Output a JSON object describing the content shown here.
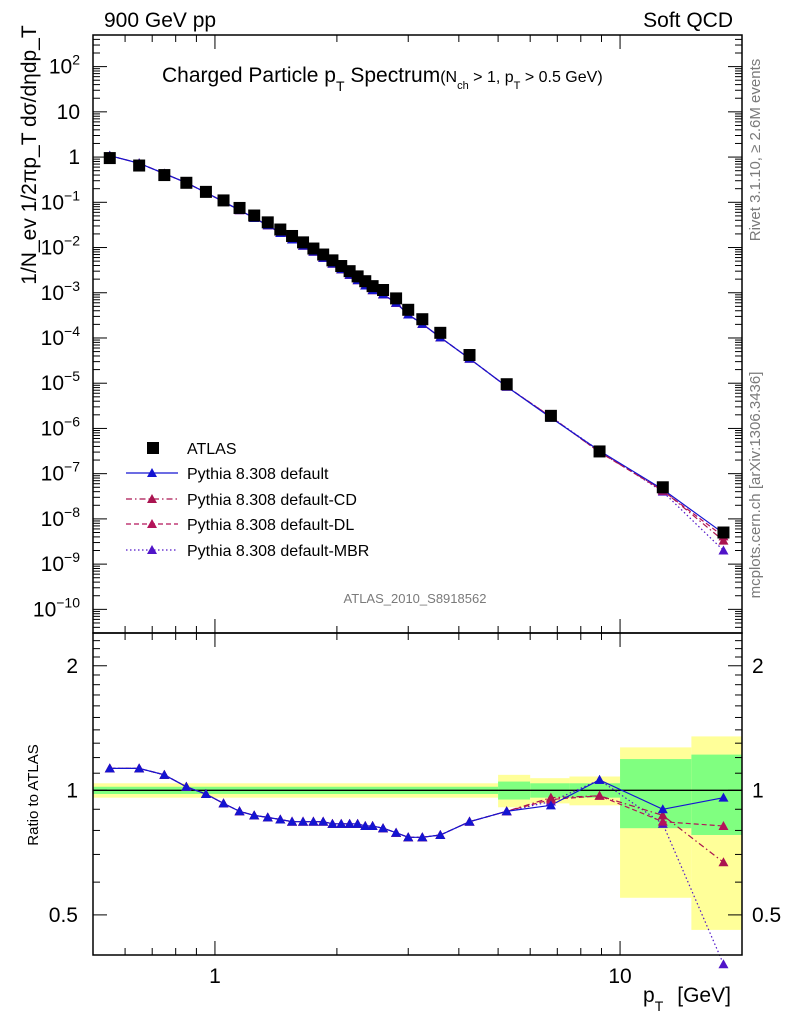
{
  "header": {
    "left": "900 GeV pp",
    "right": "Soft QCD"
  },
  "plot": {
    "title_main": "Charged Particle p",
    "title_main_sub": "T",
    "title_main_tail": " Spectrum",
    "title_cuts": "(N",
    "title_cuts_sub1": "ch",
    "title_cuts_mid": " > 1, p",
    "title_cuts_sub2": "T",
    "title_cuts_tail": " > 0.5 GeV)",
    "analysis_id": "ATLAS_2010_S8918562",
    "ylabel": "1/N_ev 1/2πp_T dσ/dηdp_T",
    "ratio_ylabel": "Ratio to ATLAS",
    "xlabel_main": "p",
    "xlabel_sub": "T",
    "xlabel_unit": "[GeV]"
  },
  "side_text": {
    "rivet": "Rivet 3.1.10, ≥ 2.6M events",
    "mcplots": "mcplots.cern.ch [arXiv:1306.3436]"
  },
  "colors": {
    "data": "#000000",
    "default": "#1414d2",
    "cd": "#aa1450",
    "dl": "#b4145a",
    "mbr": "#5014c8",
    "band_inner": "#80ff80",
    "band_outer": "#ffff99"
  },
  "chart_data": [
    {
      "type": "scatter",
      "xscale": "log",
      "yscale": "log",
      "xlim": [
        0.5,
        20
      ],
      "ylim": [
        3e-11,
        500
      ],
      "legend_position": "lower-left",
      "x": [
        0.55,
        0.65,
        0.75,
        0.85,
        0.95,
        1.05,
        1.15,
        1.25,
        1.35,
        1.45,
        1.55,
        1.65,
        1.75,
        1.85,
        1.95,
        2.05,
        2.15,
        2.25,
        2.35,
        2.45,
        2.6,
        2.8,
        3.0,
        3.25,
        3.6,
        4.25,
        5.25,
        6.75,
        8.9,
        12.75,
        18.0
      ],
      "series": [
        {
          "name": "ATLAS",
          "marker": "square",
          "values": [
            0.95,
            0.65,
            0.4,
            0.27,
            0.17,
            0.11,
            0.075,
            0.051,
            0.036,
            0.025,
            0.018,
            0.013,
            0.0095,
            0.007,
            0.0052,
            0.0039,
            0.003,
            0.0023,
            0.0018,
            0.0014,
            0.00115,
            0.00075,
            0.00042,
            0.00026,
            0.00013,
            4.2e-05,
            9.5e-06,
            1.9e-06,
            3.1e-07,
            5e-08,
            5e-09
          ]
        },
        {
          "name": "Pythia 8.308 default",
          "line": "solid",
          "values": [
            1.07,
            0.73,
            0.43,
            0.27,
            0.165,
            0.103,
            0.067,
            0.045,
            0.031,
            0.021,
            0.015,
            0.011,
            0.0081,
            0.0059,
            0.0044,
            0.0033,
            0.0025,
            0.0019,
            0.00145,
            0.00114,
            0.00092,
            0.0006,
            0.00033,
            0.000205,
            0.000103,
            3.5e-05,
            8.4e-06,
            1.72e-06,
            3.2e-07,
            4.5e-08,
            4.8e-09
          ]
        },
        {
          "name": "Pythia 8.308 default-CD",
          "line": "dashdot",
          "values": [
            1.07,
            0.73,
            0.43,
            0.27,
            0.165,
            0.103,
            0.067,
            0.045,
            0.031,
            0.021,
            0.015,
            0.011,
            0.0081,
            0.0059,
            0.0044,
            0.0033,
            0.0025,
            0.0019,
            0.00145,
            0.00114,
            0.00092,
            0.0006,
            0.00033,
            0.000205,
            0.000103,
            3.5e-05,
            8.4e-06,
            1.8e-06,
            3e-07,
            4.3e-08,
            3.3e-09
          ]
        },
        {
          "name": "Pythia 8.308 default-DL",
          "line": "dashed",
          "values": [
            1.07,
            0.73,
            0.43,
            0.27,
            0.165,
            0.103,
            0.067,
            0.045,
            0.031,
            0.021,
            0.015,
            0.011,
            0.0081,
            0.0059,
            0.0044,
            0.0033,
            0.0025,
            0.0019,
            0.00145,
            0.00114,
            0.00092,
            0.0006,
            0.00033,
            0.000205,
            0.000103,
            3.5e-05,
            8.4e-06,
            1.8e-06,
            3e-07,
            4.2e-08,
            4.1e-09
          ]
        },
        {
          "name": "Pythia 8.308 default-MBR",
          "line": "dotted",
          "values": [
            1.07,
            0.73,
            0.43,
            0.27,
            0.165,
            0.103,
            0.067,
            0.045,
            0.031,
            0.021,
            0.015,
            0.011,
            0.0081,
            0.0059,
            0.0044,
            0.0033,
            0.0025,
            0.0019,
            0.00145,
            0.00114,
            0.00092,
            0.0006,
            0.00033,
            0.000205,
            0.000103,
            3.5e-05,
            8.4e-06,
            1.8e-06,
            3.2e-07,
            4e-08,
            2e-09
          ]
        }
      ],
      "yticks": [
        "10^{-10}",
        "10^{-9}",
        "10^{-8}",
        "10^{-7}",
        "10^{-6}",
        "10^{-5}",
        "10^{-4}",
        "10^{-3}",
        "10^{-2}",
        "10^{-1}",
        "1",
        "10",
        "10^{2}"
      ]
    },
    {
      "type": "line",
      "xscale": "log",
      "yscale": "log",
      "xlim": [
        0.5,
        20
      ],
      "ylim": [
        0.4,
        2.4
      ],
      "yticks": [
        0.5,
        1,
        2
      ],
      "xticks": [
        1,
        10
      ],
      "ylabel": "Ratio to ATLAS",
      "x": [
        0.55,
        0.65,
        0.75,
        0.85,
        0.95,
        1.05,
        1.15,
        1.25,
        1.35,
        1.45,
        1.55,
        1.65,
        1.75,
        1.85,
        1.95,
        2.05,
        2.15,
        2.25,
        2.35,
        2.45,
        2.6,
        2.8,
        3.0,
        3.25,
        3.6,
        4.25,
        5.25,
        6.75,
        8.9,
        12.75,
        18.0
      ],
      "series": [
        {
          "name": "Pythia 8.308 default",
          "values": [
            1.13,
            1.13,
            1.09,
            1.02,
            0.98,
            0.93,
            0.89,
            0.87,
            0.86,
            0.85,
            0.84,
            0.84,
            0.84,
            0.84,
            0.83,
            0.83,
            0.83,
            0.83,
            0.82,
            0.82,
            0.81,
            0.79,
            0.77,
            0.77,
            0.78,
            0.84,
            0.89,
            0.92,
            1.06,
            0.9,
            0.96
          ]
        },
        {
          "name": "Pythia 8.308 default-CD",
          "values": [
            1.13,
            1.13,
            1.09,
            1.02,
            0.98,
            0.93,
            0.89,
            0.87,
            0.86,
            0.85,
            0.84,
            0.84,
            0.84,
            0.84,
            0.83,
            0.83,
            0.83,
            0.83,
            0.82,
            0.82,
            0.81,
            0.79,
            0.77,
            0.77,
            0.78,
            0.84,
            0.89,
            0.96,
            0.97,
            0.87,
            0.67
          ]
        },
        {
          "name": "Pythia 8.308 default-DL",
          "values": [
            1.13,
            1.13,
            1.09,
            1.02,
            0.98,
            0.93,
            0.89,
            0.87,
            0.86,
            0.85,
            0.84,
            0.84,
            0.84,
            0.84,
            0.83,
            0.83,
            0.83,
            0.83,
            0.82,
            0.82,
            0.81,
            0.79,
            0.77,
            0.77,
            0.78,
            0.84,
            0.89,
            0.95,
            0.97,
            0.84,
            0.82
          ]
        },
        {
          "name": "Pythia 8.308 default-MBR",
          "values": [
            1.13,
            1.13,
            1.09,
            1.02,
            0.98,
            0.93,
            0.89,
            0.87,
            0.86,
            0.85,
            0.84,
            0.84,
            0.84,
            0.84,
            0.83,
            0.83,
            0.83,
            0.83,
            0.82,
            0.82,
            0.81,
            0.79,
            0.77,
            0.77,
            0.78,
            0.84,
            0.89,
            0.94,
            1.06,
            0.83,
            0.38
          ]
        }
      ],
      "bands": [
        {
          "x_lo": 0.5,
          "x_hi": 5.0,
          "inner": [
            0.98,
            1.02
          ],
          "outer": [
            0.96,
            1.04
          ]
        },
        {
          "x_lo": 5.0,
          "x_hi": 6.0,
          "inner": [
            0.95,
            1.05
          ],
          "outer": [
            0.91,
            1.09
          ]
        },
        {
          "x_lo": 6.0,
          "x_hi": 7.5,
          "inner": [
            0.96,
            1.04
          ],
          "outer": [
            0.93,
            1.07
          ]
        },
        {
          "x_lo": 7.5,
          "x_hi": 10.0,
          "inner": [
            0.96,
            1.04
          ],
          "outer": [
            0.92,
            1.08
          ]
        },
        {
          "x_lo": 10.0,
          "x_hi": 15.0,
          "inner": [
            0.81,
            1.19
          ],
          "outer": [
            0.55,
            1.27
          ]
        },
        {
          "x_lo": 15.0,
          "x_hi": 20.0,
          "inner": [
            0.78,
            1.22
          ],
          "outer": [
            0.46,
            1.35
          ]
        }
      ]
    }
  ]
}
